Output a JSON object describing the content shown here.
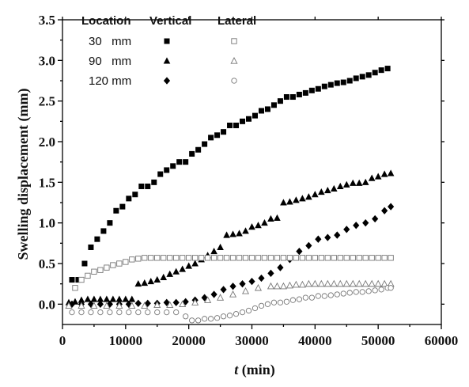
{
  "chart_data": {
    "type": "scatter",
    "xlabel_italic": "t",
    "xlabel_rest": " (min)",
    "ylabel": "Swelling displacement (mm)",
    "xlim": [
      0,
      60000
    ],
    "ylim": [
      -0.25,
      3.5
    ],
    "x_ticks": [
      "0",
      "10000",
      "20000",
      "30000",
      "40000",
      "50000",
      "60000"
    ],
    "y_ticks": [
      "0.0",
      "0.5",
      "1.0",
      "1.5",
      "2.0",
      "2.5",
      "3.0",
      "3.5"
    ],
    "legend": {
      "header_location": "Location",
      "header_vertical": "Vertical",
      "header_lateral": "Lateral",
      "rows": [
        "30   mm",
        "90   mm",
        "120 mm"
      ]
    },
    "series": [
      {
        "name": "30 mm Vertical",
        "marker": "square",
        "filled": true,
        "x": [
          1500,
          2500,
          3500,
          4500,
          5500,
          6500,
          7500,
          8500,
          9500,
          10500,
          11500,
          12500,
          13500,
          14500,
          15500,
          16500,
          17500,
          18500,
          19500,
          20500,
          21500,
          22500,
          23500,
          24500,
          25500,
          26500,
          27500,
          28500,
          29500,
          30500,
          31500,
          32500,
          33500,
          34500,
          35500,
          36500,
          37500,
          38500,
          39500,
          40500,
          41500,
          42500,
          43500,
          44500,
          45500,
          46500,
          47500,
          48500,
          49500,
          50500,
          51500
        ],
        "y": [
          0.3,
          0.3,
          0.5,
          0.7,
          0.8,
          0.9,
          1.0,
          1.15,
          1.2,
          1.3,
          1.35,
          1.45,
          1.45,
          1.5,
          1.6,
          1.65,
          1.7,
          1.75,
          1.75,
          1.85,
          1.9,
          1.97,
          2.05,
          2.08,
          2.12,
          2.2,
          2.2,
          2.25,
          2.28,
          2.32,
          2.38,
          2.4,
          2.45,
          2.5,
          2.55,
          2.55,
          2.58,
          2.6,
          2.63,
          2.65,
          2.68,
          2.7,
          2.72,
          2.73,
          2.75,
          2.78,
          2.8,
          2.82,
          2.85,
          2.88,
          2.9
        ]
      },
      {
        "name": "90 mm Vertical",
        "marker": "triangle",
        "filled": true,
        "x": [
          1000,
          2000,
          3000,
          4000,
          5000,
          6000,
          7000,
          8000,
          9000,
          10000,
          11000,
          12000,
          13000,
          14000,
          15000,
          16000,
          17000,
          18000,
          19000,
          20000,
          21000,
          22000,
          23000,
          24000,
          25000,
          26000,
          27000,
          28000,
          29000,
          30000,
          31000,
          32000,
          33000,
          34000,
          35000,
          36000,
          37000,
          38000,
          39000,
          40000,
          41000,
          42000,
          43000,
          44000,
          45000,
          46000,
          47000,
          48000,
          49000,
          50000,
          51000,
          52000
        ],
        "y": [
          0.02,
          0.03,
          0.05,
          0.06,
          0.06,
          0.06,
          0.06,
          0.06,
          0.06,
          0.06,
          0.06,
          0.25,
          0.26,
          0.28,
          0.3,
          0.33,
          0.37,
          0.4,
          0.43,
          0.47,
          0.5,
          0.55,
          0.6,
          0.65,
          0.7,
          0.85,
          0.86,
          0.87,
          0.9,
          0.95,
          0.97,
          1.0,
          1.05,
          1.06,
          1.25,
          1.26,
          1.28,
          1.3,
          1.32,
          1.35,
          1.38,
          1.4,
          1.42,
          1.45,
          1.47,
          1.49,
          1.49,
          1.5,
          1.55,
          1.57,
          1.6,
          1.61
        ]
      },
      {
        "name": "120 mm Vertical",
        "marker": "diamond",
        "filled": true,
        "x": [
          1500,
          3000,
          4500,
          6000,
          7500,
          9000,
          10500,
          12000,
          13500,
          15000,
          16500,
          18000,
          19500,
          21000,
          22500,
          24000,
          25500,
          27000,
          28500,
          30000,
          31500,
          33000,
          34500,
          36000,
          37500,
          39000,
          40500,
          42000,
          43500,
          45000,
          46500,
          48000,
          49500,
          51000,
          52000
        ],
        "y": [
          0.0,
          0.0,
          0.0,
          0.0,
          0.0,
          0.0,
          0.0,
          0.01,
          0.01,
          0.01,
          0.02,
          0.02,
          0.03,
          0.05,
          0.08,
          0.12,
          0.18,
          0.22,
          0.25,
          0.28,
          0.32,
          0.38,
          0.45,
          0.55,
          0.65,
          0.72,
          0.8,
          0.82,
          0.85,
          0.92,
          0.97,
          1.0,
          1.05,
          1.15,
          1.2
        ]
      },
      {
        "name": "30 mm Lateral",
        "marker": "square",
        "filled": false,
        "x": [
          2000,
          3000,
          4000,
          5000,
          6000,
          7000,
          8000,
          9000,
          10000,
          11000,
          12000,
          13000,
          14000,
          15000,
          16000,
          17000,
          18000,
          19000,
          20000,
          21000,
          22000,
          23000,
          24000,
          25000,
          26000,
          27000,
          28000,
          29000,
          30000,
          31000,
          32000,
          33000,
          34000,
          35000,
          36000,
          37000,
          38000,
          39000,
          40000,
          41000,
          42000,
          43000,
          44000,
          45000,
          46000,
          47000,
          48000,
          49000,
          50000,
          51000,
          52000
        ],
        "y": [
          0.2,
          0.3,
          0.35,
          0.4,
          0.42,
          0.45,
          0.48,
          0.5,
          0.52,
          0.55,
          0.56,
          0.57,
          0.57,
          0.57,
          0.57,
          0.57,
          0.57,
          0.57,
          0.57,
          0.57,
          0.57,
          0.57,
          0.57,
          0.57,
          0.57,
          0.57,
          0.57,
          0.57,
          0.57,
          0.57,
          0.57,
          0.57,
          0.57,
          0.57,
          0.57,
          0.57,
          0.57,
          0.57,
          0.57,
          0.57,
          0.57,
          0.57,
          0.57,
          0.57,
          0.57,
          0.57,
          0.57,
          0.57,
          0.57,
          0.57,
          0.57
        ]
      },
      {
        "name": "90 mm Lateral",
        "marker": "triangle",
        "filled": false,
        "x": [
          1000,
          3000,
          5000,
          7000,
          9000,
          11000,
          13000,
          15000,
          17000,
          19000,
          21000,
          23000,
          25000,
          27000,
          29000,
          31000,
          33000,
          34000,
          35000,
          36000,
          37000,
          38000,
          39000,
          40000,
          41000,
          42000,
          43000,
          44000,
          45000,
          46000,
          47000,
          48000,
          49000,
          50000,
          51000,
          52000
        ],
        "y": [
          -0.02,
          -0.02,
          -0.02,
          -0.02,
          -0.02,
          -0.02,
          -0.02,
          -0.01,
          -0.01,
          0.0,
          0.02,
          0.05,
          0.08,
          0.12,
          0.16,
          0.2,
          0.22,
          0.22,
          0.22,
          0.23,
          0.24,
          0.24,
          0.25,
          0.25,
          0.25,
          0.25,
          0.25,
          0.25,
          0.25,
          0.25,
          0.25,
          0.25,
          0.25,
          0.25,
          0.25,
          0.25
        ]
      },
      {
        "name": "120 mm Lateral",
        "marker": "circle",
        "filled": false,
        "x": [
          1500,
          3000,
          4500,
          6000,
          7500,
          9000,
          10500,
          12000,
          13500,
          15000,
          16500,
          18000,
          19500,
          20500,
          21500,
          22500,
          23500,
          24500,
          25500,
          26500,
          27500,
          28500,
          29500,
          30500,
          31500,
          32500,
          33500,
          34500,
          35500,
          36500,
          37500,
          38500,
          39500,
          40500,
          41500,
          42500,
          43500,
          44500,
          45500,
          46500,
          47500,
          48500,
          49500,
          50500,
          51500,
          52000
        ],
        "y": [
          -0.1,
          -0.1,
          -0.1,
          -0.1,
          -0.1,
          -0.1,
          -0.1,
          -0.1,
          -0.1,
          -0.1,
          -0.1,
          -0.1,
          -0.15,
          -0.2,
          -0.2,
          -0.18,
          -0.18,
          -0.17,
          -0.15,
          -0.14,
          -0.12,
          -0.1,
          -0.08,
          -0.05,
          -0.02,
          0.0,
          0.02,
          0.02,
          0.03,
          0.05,
          0.06,
          0.08,
          0.08,
          0.1,
          0.1,
          0.11,
          0.12,
          0.13,
          0.14,
          0.15,
          0.15,
          0.16,
          0.17,
          0.18,
          0.2,
          0.2
        ]
      }
    ]
  }
}
